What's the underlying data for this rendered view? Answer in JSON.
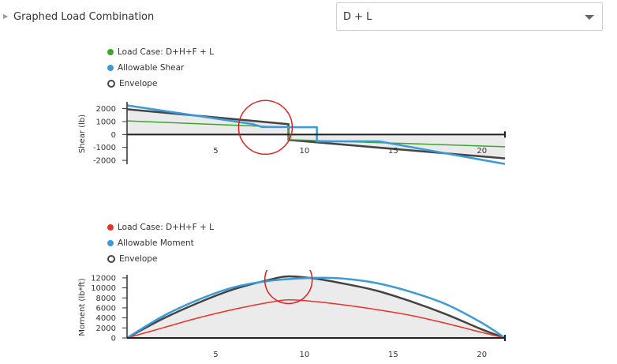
{
  "header": {
    "section_label": "Graphed Load Combination",
    "toggle_icon": "caret-right-icon"
  },
  "combo_select": {
    "value": "D + L",
    "icon": "chevron-down-icon"
  },
  "chart_data": [
    {
      "type": "line",
      "xlabel": "",
      "ylabel": "Shear (lb)",
      "xlim": [
        0,
        21.3
      ],
      "ylim": [
        -2300,
        2400
      ],
      "x_ticks": [
        "5",
        "10",
        "15",
        "20"
      ],
      "x_tick_values": [
        5,
        10,
        15,
        20
      ],
      "y_ticks": [
        "2000",
        "1000",
        "0",
        "-1000",
        "-2000"
      ],
      "y_tick_values": [
        2000,
        1000,
        0,
        -1000,
        -2000
      ],
      "legend": [
        {
          "label": "Load Case: D+H+F + L",
          "color": "#3aa82a",
          "marker": "dot"
        },
        {
          "label": "Allowable Shear",
          "color": "#3b9ad8",
          "marker": "dot"
        },
        {
          "label": "Envelope",
          "color": "#444444",
          "marker": "ring"
        }
      ],
      "series": [
        {
          "name": "Envelope",
          "color": "#444444",
          "width": 2.5,
          "fill": "#ebebeb",
          "x": [
            0,
            9.1,
            9.1,
            21.3
          ],
          "y": [
            1950,
            800,
            -420,
            -1850
          ]
        },
        {
          "name": "Load Case: D+H+F + L",
          "color": "#3aa82a",
          "width": 1.5,
          "x": [
            0,
            9.1,
            9.1,
            21.3
          ],
          "y": [
            1050,
            550,
            -400,
            -950
          ]
        },
        {
          "name": "Allowable Shear",
          "color": "#3b9ad8",
          "width": 2.5,
          "x": [
            0,
            7.1,
            7.6,
            9.1,
            9.1,
            10.7,
            10.7,
            14.2,
            21.3
          ],
          "y": [
            2250,
            800,
            580,
            580,
            560,
            560,
            -530,
            -530,
            -2280
          ]
        }
      ],
      "annotations": [
        {
          "type": "circle",
          "x": 7.8,
          "y": 550
        }
      ]
    },
    {
      "type": "line",
      "xlabel": "",
      "ylabel": "Moment (lb*ft)",
      "xlim": [
        0,
        21.3
      ],
      "ylim": [
        0,
        12300
      ],
      "x_ticks": [
        "5",
        "10",
        "15",
        "20"
      ],
      "x_tick_values": [
        5,
        10,
        15,
        20
      ],
      "y_ticks": [
        "12000",
        "10000",
        "8000",
        "6000",
        "4000",
        "2000",
        "0"
      ],
      "y_tick_values": [
        12000,
        10000,
        8000,
        6000,
        4000,
        2000,
        0
      ],
      "legend": [
        {
          "label": "Load Case: D+H+F + L",
          "color": "#e8332a",
          "marker": "dot"
        },
        {
          "label": "Allowable Moment",
          "color": "#3b9ad8",
          "marker": "dot"
        },
        {
          "label": "Envelope",
          "color": "#444444",
          "marker": "ring"
        }
      ],
      "series": [
        {
          "name": "Envelope",
          "color": "#444444",
          "width": 2.5,
          "fill": "#ebebeb",
          "x": [
            0,
            2,
            4,
            6,
            8,
            9.1,
            10.5,
            12,
            14,
            16,
            18,
            20,
            21.3
          ],
          "y": [
            0,
            3800,
            7000,
            9700,
            11600,
            12300,
            11900,
            11000,
            9500,
            7300,
            4700,
            1700,
            0
          ]
        },
        {
          "name": "Load Case: D+H+F + L",
          "color": "#e8332a",
          "width": 1.5,
          "x": [
            0,
            2,
            4,
            6,
            8,
            9.1,
            10.5,
            12,
            14,
            16,
            18,
            20,
            21.3
          ],
          "y": [
            0,
            2000,
            4000,
            5700,
            7100,
            7600,
            7300,
            6700,
            5700,
            4500,
            2900,
            1100,
            0
          ]
        },
        {
          "name": "Allowable Moment",
          "color": "#3b9ad8",
          "width": 2.5,
          "x": [
            0,
            2,
            4,
            6,
            8,
            10.5,
            12,
            14,
            16,
            18,
            20,
            21.3
          ],
          "y": [
            0,
            4300,
            7600,
            10100,
            11400,
            12000,
            11900,
            11000,
            9200,
            6700,
            3000,
            0
          ]
        }
      ],
      "annotations": [
        {
          "type": "circle",
          "x": 9.1,
          "y": 11600
        }
      ]
    }
  ]
}
